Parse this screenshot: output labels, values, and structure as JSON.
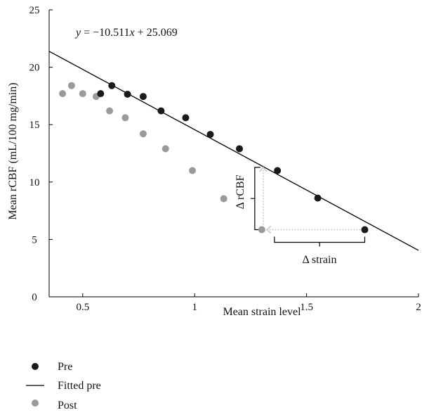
{
  "colors": {
    "pre": "#1a1a1a",
    "post": "#9a9a9a",
    "fit": "#000000",
    "guide": "#c8c8c8"
  },
  "chart_data": {
    "type": "scatter",
    "xlabel": "Mean strain level",
    "ylabel": "Mean rCBF (mL/100 mg/min)",
    "xlim": [
      0.35,
      2.0
    ],
    "ylim": [
      0,
      25
    ],
    "x_ticks": [
      0.5,
      1,
      1.5,
      2
    ],
    "x_tick_labels": [
      "0.5",
      "1",
      "1.5",
      "2"
    ],
    "y_ticks": [
      0,
      5,
      10,
      15,
      20,
      25
    ],
    "y_tick_labels": [
      "0",
      "5",
      "10",
      "15",
      "20",
      "25"
    ],
    "grid": false,
    "legend_position": "bottom-left",
    "series": [
      {
        "name": "Pre",
        "kind": "points",
        "points": [
          {
            "x": 0.58,
            "y": 17.7
          },
          {
            "x": 0.63,
            "y": 18.4
          },
          {
            "x": 0.7,
            "y": 17.65
          },
          {
            "x": 0.77,
            "y": 17.45
          },
          {
            "x": 0.85,
            "y": 16.2
          },
          {
            "x": 0.96,
            "y": 15.6
          },
          {
            "x": 1.07,
            "y": 14.15
          },
          {
            "x": 1.2,
            "y": 12.9
          },
          {
            "x": 1.37,
            "y": 11.0
          },
          {
            "x": 1.55,
            "y": 8.6
          },
          {
            "x": 1.76,
            "y": 5.85
          }
        ]
      },
      {
        "name": "Fitted pre",
        "kind": "line",
        "slope": -10.511,
        "intercept": 25.069,
        "equation": "y = −10.511x + 25.069"
      },
      {
        "name": "Post",
        "kind": "points",
        "points": [
          {
            "x": 0.41,
            "y": 17.7
          },
          {
            "x": 0.45,
            "y": 18.4
          },
          {
            "x": 0.5,
            "y": 17.7
          },
          {
            "x": 0.56,
            "y": 17.45
          },
          {
            "x": 0.62,
            "y": 16.2
          },
          {
            "x": 0.69,
            "y": 15.6
          },
          {
            "x": 0.77,
            "y": 14.2
          },
          {
            "x": 0.87,
            "y": 12.9
          },
          {
            "x": 0.99,
            "y": 11.0
          },
          {
            "x": 1.13,
            "y": 8.55
          },
          {
            "x": 1.3,
            "y": 5.85
          }
        ]
      }
    ],
    "annotations": {
      "delta_rcbf": "Δ rCBF",
      "delta_strain": "Δ strain",
      "equation_prefix": "y",
      "equation_mid": " = −10.511",
      "equation_var": "x",
      "equation_suffix": " + 25.069"
    },
    "legend": [
      {
        "label": "Pre",
        "marker": "dot",
        "color": "#1a1a1a"
      },
      {
        "label": "Fitted pre",
        "marker": "line",
        "color": "#000000"
      },
      {
        "label": "Post",
        "marker": "dot",
        "color": "#9a9a9a"
      }
    ]
  }
}
